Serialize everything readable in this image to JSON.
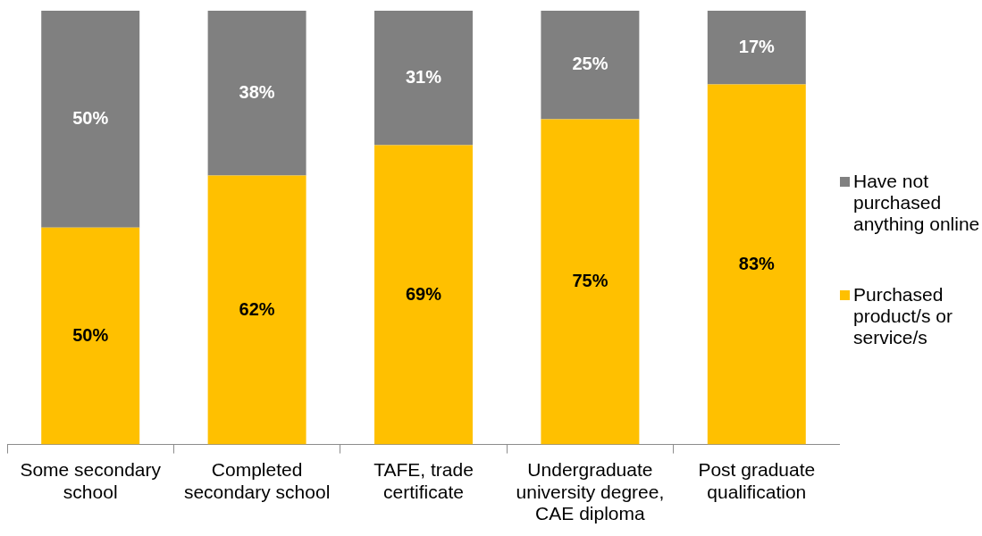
{
  "chart_data": {
    "type": "bar",
    "stacked": true,
    "categories": [
      "Some secondary school",
      "Completed secondary school",
      "TAFE, trade certificate",
      "Undergraduate university degree, CAE diploma",
      "Post graduate qualification"
    ],
    "series": [
      {
        "name": "Purchased product/s or service/s",
        "color": "#ffc000",
        "values": [
          50,
          62,
          69,
          75,
          83
        ],
        "value_labels": [
          "50%",
          "62%",
          "69%",
          "75%",
          "83%"
        ]
      },
      {
        "name": "Have not purchased anything online",
        "color": "#808080",
        "values": [
          50,
          38,
          31,
          25,
          17
        ],
        "value_labels": [
          "50%",
          "38%",
          "31%",
          "25%",
          "17%"
        ]
      }
    ],
    "legend": "right",
    "grid": false,
    "tick_labels": "x"
  }
}
